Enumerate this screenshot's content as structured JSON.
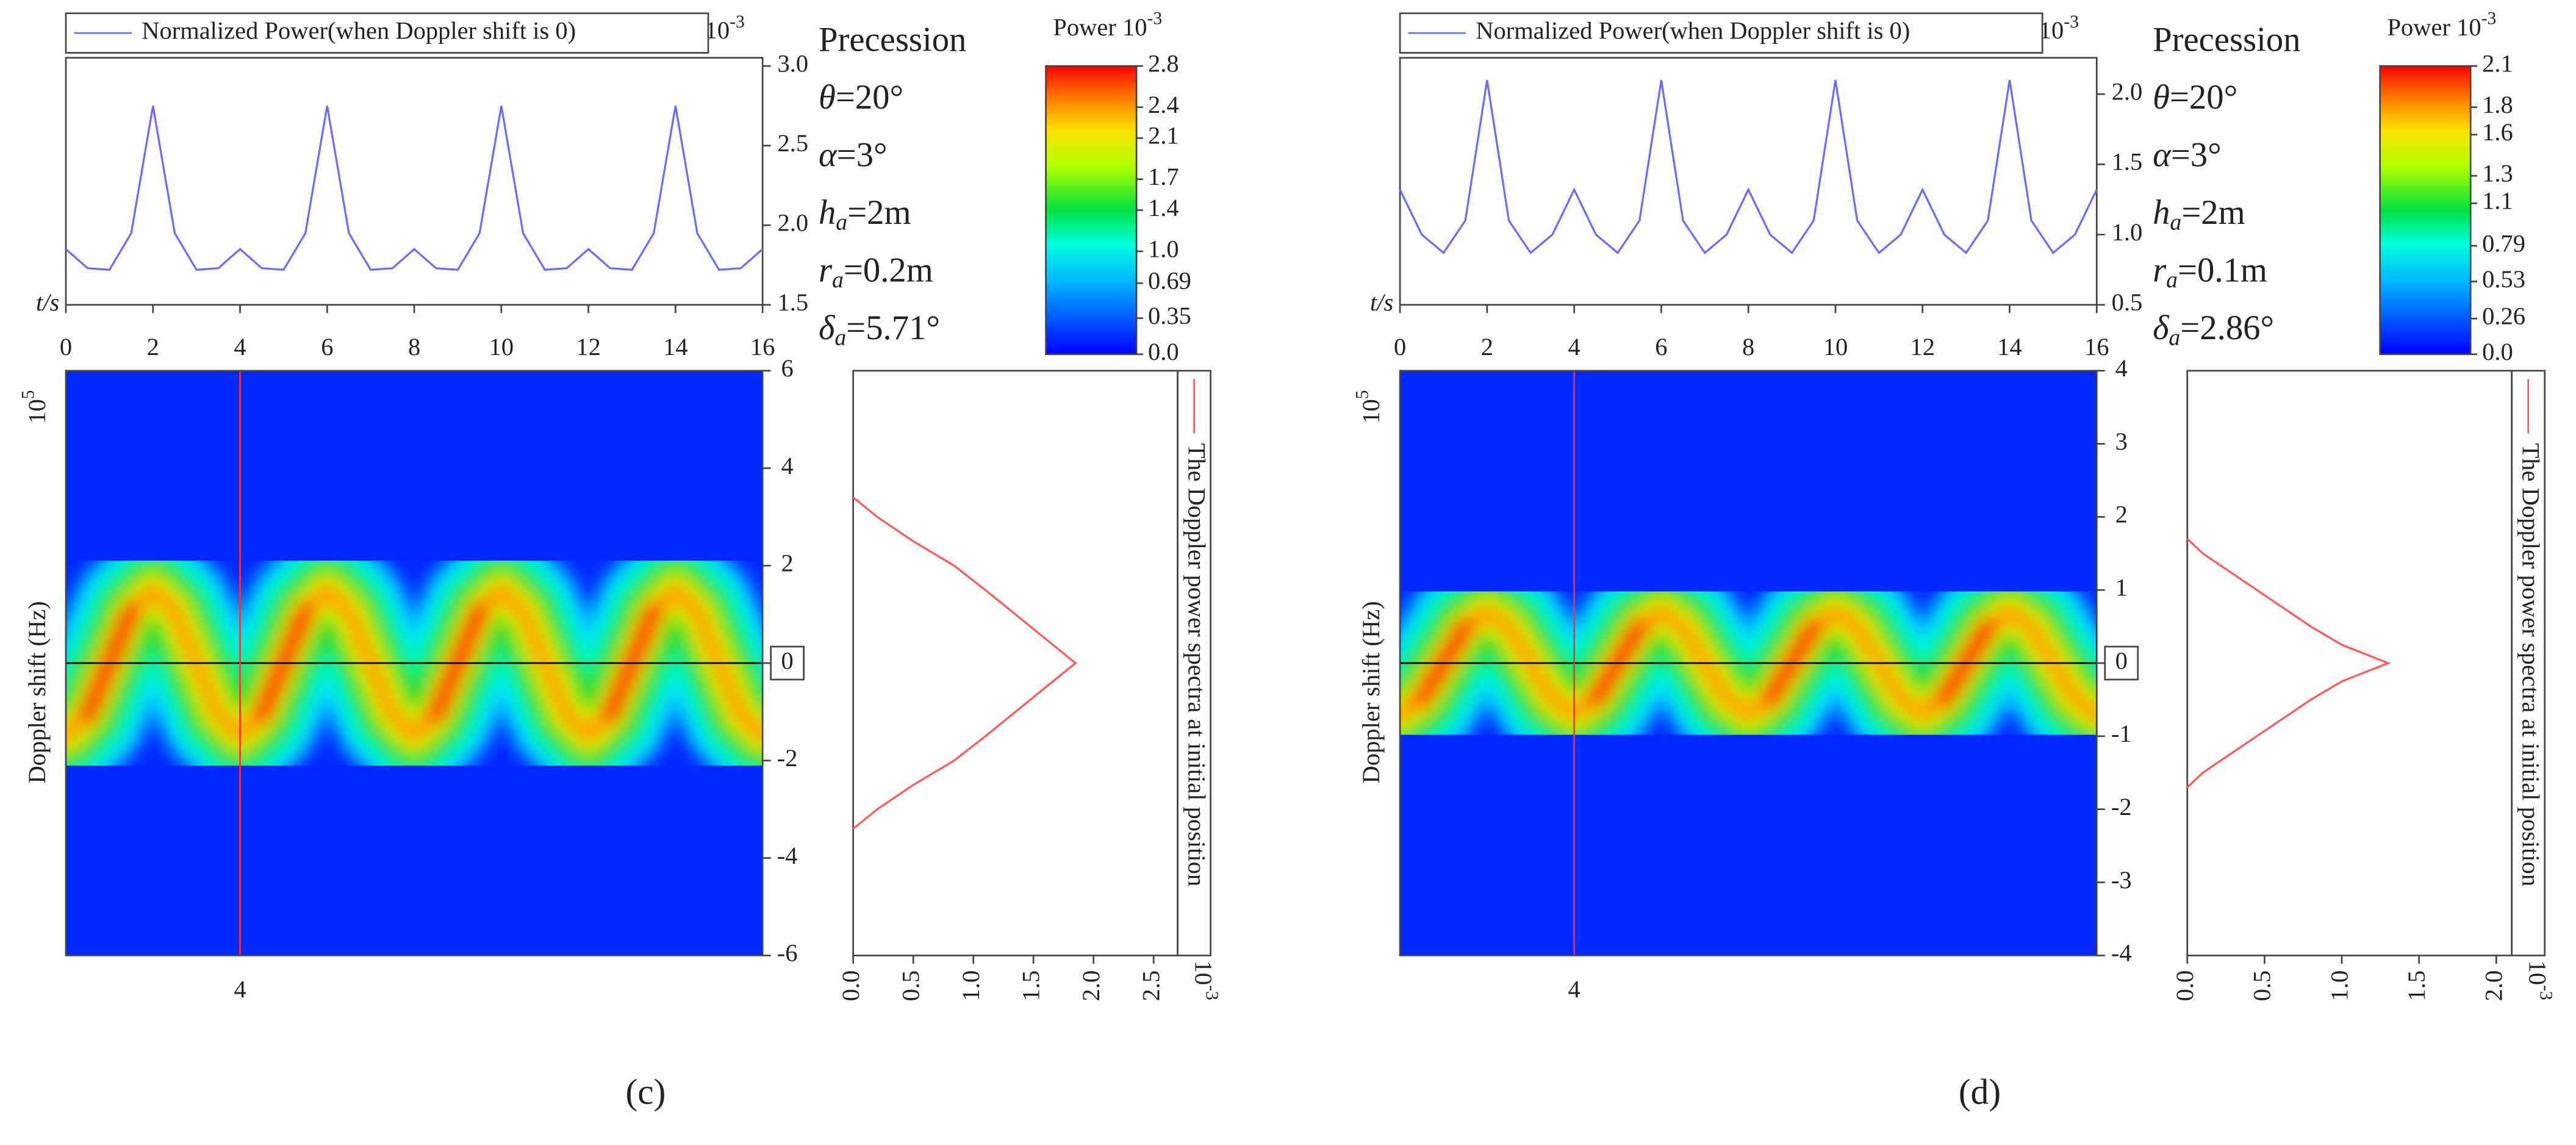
{
  "chart_data": [
    {
      "type": "line",
      "x": [
        0,
        0.5,
        1,
        1.5,
        2,
        2.5,
        3,
        3.5,
        4,
        4.5,
        5,
        5.5,
        6,
        6.5,
        7,
        7.5,
        8,
        8.5,
        9,
        9.5,
        10,
        10.5,
        11,
        11.5,
        12,
        12.5,
        13,
        13.5,
        14,
        14.5,
        15,
        15.5,
        16
      ],
      "series": [
        {
          "name": "Normalized Power(when Doppler shift is 0)",
          "color": "#6b6bff",
          "values": [
            1.85,
            1.73,
            1.72,
            1.95,
            2.75,
            1.95,
            1.72,
            1.73,
            1.85,
            1.73,
            1.72,
            1.95,
            2.75,
            1.95,
            1.72,
            1.73,
            1.85,
            1.73,
            1.72,
            1.95,
            2.75,
            1.95,
            1.72,
            1.73,
            1.85,
            1.73,
            1.72,
            1.95,
            2.75,
            1.95,
            1.72,
            1.73,
            1.85
          ]
        }
      ],
      "xlim": [
        0,
        16
      ],
      "xticks": [
        0,
        2,
        4,
        6,
        8,
        10,
        12,
        14,
        16
      ],
      "xlabel": "t/s",
      "ylim": [
        1.5,
        3.0
      ],
      "yticks": [
        1.5,
        {
          "value": 2,
          "label": "2.0"
        },
        2.5,
        {
          "value": 3,
          "label": "3.0"
        }
      ],
      "multiplier": {
        "base": "10",
        "exponent": "-3"
      }
    },
    {
      "type": "heatmap",
      "x": [
        0,
        0.5,
        1,
        1.5,
        2,
        2.5,
        3,
        3.5,
        4,
        4.5,
        5,
        5.5,
        6,
        6.5,
        7,
        7.5,
        8,
        8.5,
        9,
        9.5,
        10,
        10.5,
        11,
        11.5,
        12,
        12.5,
        13,
        13.5,
        14,
        14.5,
        15,
        15.5,
        16
      ],
      "ridge": [
        -1.5,
        -1.06,
        0,
        1.06,
        1.5,
        1.06,
        0,
        -1.06,
        -1.5,
        -1.06,
        0,
        1.06,
        1.5,
        1.06,
        0,
        -1.06,
        -1.5,
        -1.06,
        0,
        1.06,
        1.5,
        1.06,
        0,
        -1.06,
        -1.5,
        -1.06,
        0,
        1.06,
        1.5,
        1.06,
        0,
        -1.06,
        -1.5
      ],
      "xlim": [
        0,
        16
      ],
      "xticks": [
        4
      ],
      "crosshair": {
        "x": 4,
        "y": 0
      },
      "ylim": [
        -6,
        6
      ],
      "yticks": [
        -6,
        -4,
        -2,
        0,
        2,
        4,
        6
      ],
      "ylabel": "Doppler shift (Hz)",
      "multiplier": {
        "base": "10",
        "exponent": "5"
      }
    },
    {
      "type": "colorbar",
      "title": "Power",
      "multiplier": {
        "base": "10",
        "exponent": "-3"
      },
      "lim": [
        0,
        2.8
      ],
      "ticks": [
        {
          "value": 0,
          "label": "0.0"
        },
        0.35,
        0.69,
        {
          "value": 1,
          "label": "1.0"
        },
        1.4,
        1.7,
        2.1,
        2.4,
        2.8
      ]
    },
    {
      "type": "spectrum",
      "name": "The Doppler power spectra at initial position",
      "color": "#ff5a5a",
      "doppler": [
        3.4,
        3,
        2.5,
        2,
        1.5,
        1,
        0.5,
        0,
        -0.5,
        -1,
        -1.5,
        -2,
        -2.5,
        -3,
        -3.4
      ],
      "values": [
        0,
        0.2,
        0.5,
        0.84,
        1.1,
        1.35,
        1.6,
        1.85,
        1.6,
        1.35,
        1.1,
        0.84,
        0.5,
        0.2,
        0
      ],
      "ylim": [
        -6,
        6
      ],
      "xlim": [
        0,
        2.7
      ],
      "xticks": [
        {
          "value": 0,
          "label": "0.0"
        },
        0.5,
        {
          "value": 1,
          "label": "1.0"
        },
        1.5,
        {
          "value": 2,
          "label": "2.0"
        },
        2.5
      ],
      "multiplier": {
        "base": "10",
        "exponent": "-3"
      }
    },
    {
      "type": "text",
      "title": "Precession",
      "parameters": [
        {
          "symbol": "θ",
          "sub": "",
          "value": "=20°"
        },
        {
          "symbol": "α",
          "sub": "",
          "value": "=3°"
        },
        {
          "symbol": "h",
          "sub": "a",
          "value": "=2m"
        },
        {
          "symbol": "r",
          "sub": "a",
          "value": "=0.2m"
        },
        {
          "symbol": "δ",
          "sub": "a",
          "value": "=5.71°"
        }
      ],
      "label": "(c)"
    },
    {
      "type": "line",
      "x": [
        0,
        0.5,
        1,
        1.5,
        2,
        2.5,
        3,
        3.5,
        4,
        4.5,
        5,
        5.5,
        6,
        6.5,
        7,
        7.5,
        8,
        8.5,
        9,
        9.5,
        10,
        10.5,
        11,
        11.5,
        12,
        12.5,
        13,
        13.5,
        14,
        14.5,
        15,
        15.5,
        16
      ],
      "series": [
        {
          "name": "Normalized Power(when Doppler shift is 0)",
          "color": "#6b6bff",
          "values": [
            1.32,
            1.0,
            0.87,
            1.1,
            2.1,
            1.1,
            0.87,
            1.0,
            1.32,
            1.0,
            0.87,
            1.1,
            2.1,
            1.1,
            0.87,
            1.0,
            1.32,
            1.0,
            0.87,
            1.1,
            2.1,
            1.1,
            0.87,
            1.0,
            1.32,
            1.0,
            0.87,
            1.1,
            2.1,
            1.1,
            0.87,
            1.0,
            1.32
          ]
        }
      ],
      "xlim": [
        0,
        16
      ],
      "xticks": [
        0,
        2,
        4,
        6,
        8,
        10,
        12,
        14,
        16
      ],
      "xlabel": "t/s",
      "ylim": [
        0.5,
        2.2
      ],
      "yticks": [
        0.5,
        {
          "value": 1,
          "label": "1.0"
        },
        1.5,
        {
          "value": 2,
          "label": "2.0"
        }
      ],
      "multiplier": {
        "base": "10",
        "exponent": "-3"
      }
    },
    {
      "type": "heatmap",
      "x": [
        0,
        0.5,
        1,
        1.5,
        2,
        2.5,
        3,
        3.5,
        4,
        4.5,
        5,
        5.5,
        6,
        6.5,
        7,
        7.5,
        8,
        8.5,
        9,
        9.5,
        10,
        10.5,
        11,
        11.5,
        12,
        12.5,
        13,
        13.5,
        14,
        14.5,
        15,
        15.5,
        16
      ],
      "ridge": [
        -0.7,
        -0.49,
        0,
        0.49,
        0.7,
        0.49,
        0,
        -0.49,
        -0.7,
        -0.49,
        0,
        0.49,
        0.7,
        0.49,
        0,
        -0.49,
        -0.7,
        -0.49,
        0,
        0.49,
        0.7,
        0.49,
        0,
        -0.49,
        -0.7,
        -0.49,
        0,
        0.49,
        0.7,
        0.49,
        0,
        -0.49,
        -0.7
      ],
      "xlim": [
        0,
        16
      ],
      "xticks": [
        4
      ],
      "crosshair": {
        "x": 4,
        "y": 0
      },
      "ylim": [
        -4,
        4
      ],
      "yticks": [
        -4,
        -3,
        -2,
        -1,
        0,
        1,
        2,
        3,
        4
      ],
      "ylabel": "Doppler shift (Hz)",
      "multiplier": {
        "base": "10",
        "exponent": "5"
      }
    },
    {
      "type": "colorbar",
      "title": "Power",
      "multiplier": {
        "base": "10",
        "exponent": "-3"
      },
      "lim": [
        0,
        2.1
      ],
      "ticks": [
        {
          "value": 0,
          "label": "0.0"
        },
        0.26,
        0.53,
        0.79,
        1.1,
        1.3,
        1.6,
        1.8,
        2.1
      ]
    },
    {
      "type": "spectrum",
      "name": "The Doppler power spectra at initial position",
      "color": "#ff5a5a",
      "doppler": [
        1.7,
        1.5,
        1,
        0.5,
        0.25,
        0,
        -0.25,
        -0.5,
        -1,
        -1.5,
        -1.7
      ],
      "values": [
        0,
        0.1,
        0.45,
        0.8,
        1.0,
        1.3,
        1.0,
        0.8,
        0.45,
        0.1,
        0
      ],
      "ylim": [
        -4,
        4
      ],
      "xlim": [
        0,
        2.1
      ],
      "xticks": [
        {
          "value": 0,
          "label": "0.0"
        },
        0.5,
        {
          "value": 1,
          "label": "1.0"
        },
        1.5,
        {
          "value": 2,
          "label": "2.0"
        }
      ],
      "multiplier": {
        "base": "10",
        "exponent": "-3"
      }
    },
    {
      "type": "text",
      "title": "Precession",
      "parameters": [
        {
          "symbol": "θ",
          "sub": "",
          "value": "=20°"
        },
        {
          "symbol": "α",
          "sub": "",
          "value": "=3°"
        },
        {
          "symbol": "h",
          "sub": "a",
          "value": "=2m"
        },
        {
          "symbol": "r",
          "sub": "a",
          "value": "=0.1m"
        },
        {
          "symbol": "δ",
          "sub": "a",
          "value": "=2.86°"
        }
      ],
      "label": "(d)"
    }
  ]
}
